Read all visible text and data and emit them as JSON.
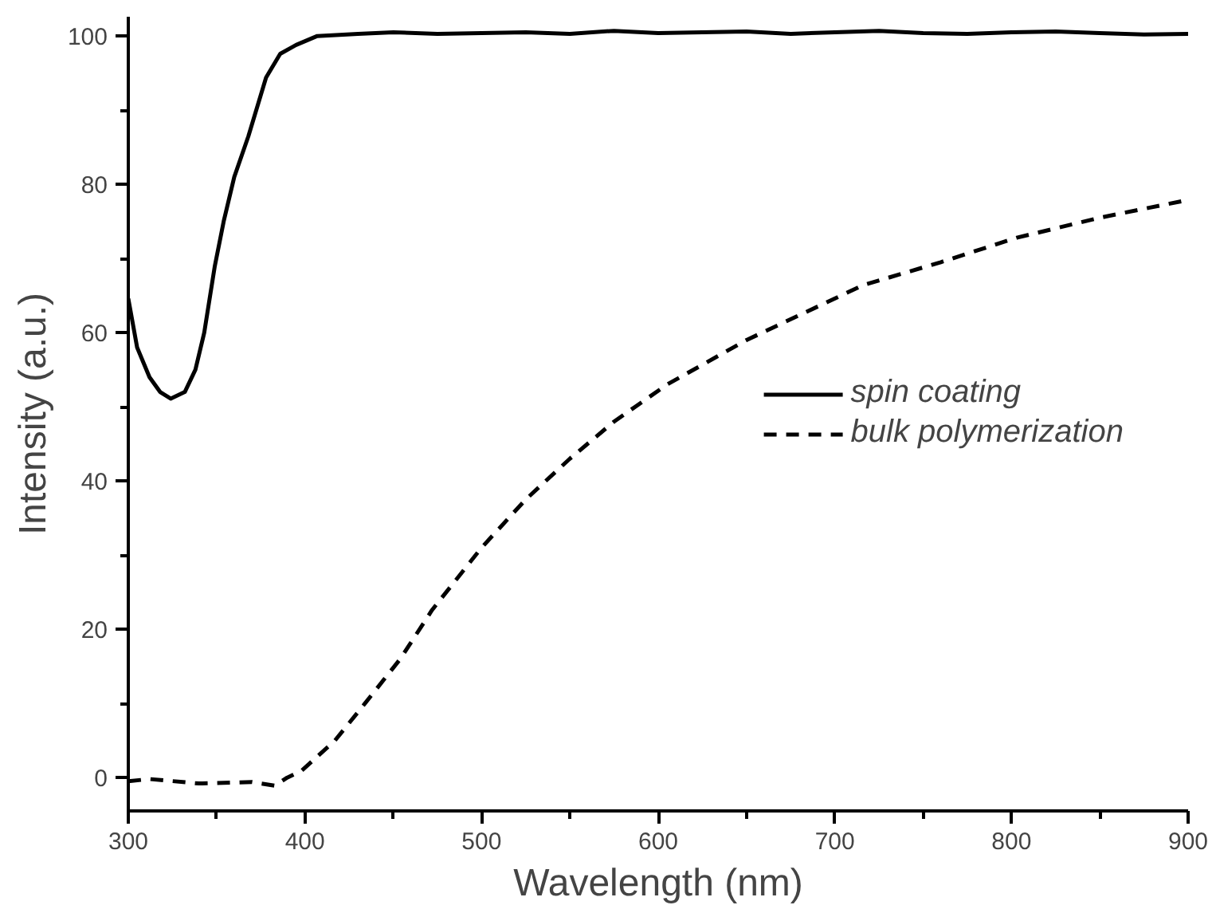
{
  "chart_data": {
    "type": "line",
    "xlabel": "Wavelength (nm)",
    "ylabel": "Intensity (a.u.)",
    "xlim": [
      300,
      900
    ],
    "ylim": [
      -4.5,
      102.6
    ],
    "xticks": [
      300,
      400,
      500,
      600,
      700,
      800,
      900
    ],
    "yticks": [
      0,
      20,
      40,
      60,
      80,
      100
    ],
    "grid": false,
    "legend": "right",
    "marker": "none",
    "series": [
      {
        "name": "spin coating",
        "color": "#000000",
        "line_style": "solid",
        "x": [
          300,
          305,
          312,
          318,
          324,
          332,
          338,
          343,
          349,
          354,
          360,
          368,
          378,
          386,
          395,
          407,
          430,
          450,
          475,
          500,
          525,
          550,
          575,
          600,
          625,
          650,
          675,
          700,
          725,
          750,
          775,
          800,
          825,
          850,
          875,
          900
        ],
        "values": [
          64.6,
          58,
          54,
          52,
          51.1,
          52,
          55,
          60,
          69,
          75,
          81,
          86.5,
          94.4,
          97.6,
          98.8,
          100,
          100.3,
          100.5,
          100.3,
          100.4,
          100.5,
          100.3,
          100.7,
          100.4,
          100.5,
          100.6,
          100.3,
          100.5,
          100.7,
          100.4,
          100.3,
          100.5,
          100.6,
          100.4,
          100.2,
          100.3
        ]
      },
      {
        "name": "bulk polymerization",
        "color": "#000000",
        "line_style": "dashed",
        "x": [
          300,
          312,
          340,
          370,
          383,
          390,
          398,
          417,
          434,
          454,
          472,
          500,
          525,
          550,
          575,
          605,
          650,
          716,
          760,
          803,
          850,
          900
        ],
        "values": [
          -0.5,
          -0.2,
          -0.8,
          -0.6,
          -1.1,
          0,
          0.9,
          5,
          10,
          16,
          22.6,
          31,
          37.5,
          43,
          48,
          53,
          59,
          66.4,
          69.5,
          72.8,
          75.5,
          77.9
        ]
      }
    ]
  }
}
